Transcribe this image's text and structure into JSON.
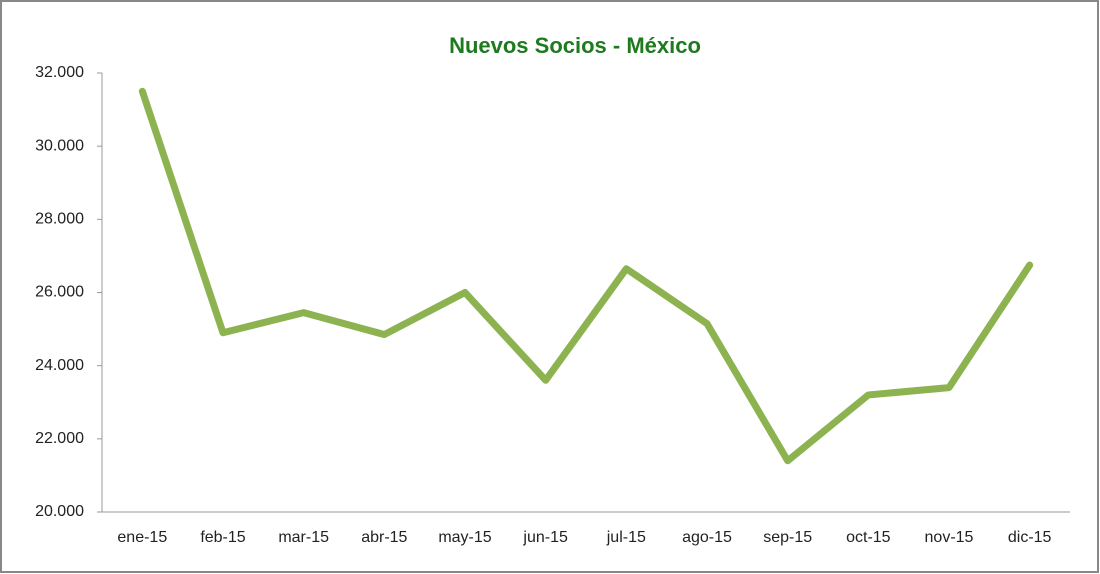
{
  "chart_data": {
    "type": "line",
    "title": "Nuevos Socios - México",
    "categories": [
      "ene-15",
      "feb-15",
      "mar-15",
      "abr-15",
      "may-15",
      "jun-15",
      "jul-15",
      "ago-15",
      "sep-15",
      "oct-15",
      "nov-15",
      "dic-15"
    ],
    "values": [
      31500,
      24900,
      25450,
      24850,
      26000,
      23600,
      26650,
      25150,
      21400,
      23200,
      23400,
      26750
    ],
    "color": "#8db350",
    "ylim": [
      20000,
      32000
    ],
    "yticks": [
      {
        "value": 20000,
        "label": "20.000"
      },
      {
        "value": 22000,
        "label": "22.000"
      },
      {
        "value": 24000,
        "label": "24.000"
      },
      {
        "value": 26000,
        "label": "26.000"
      },
      {
        "value": 28000,
        "label": "28.000"
      },
      {
        "value": 30000,
        "label": "30.000"
      },
      {
        "value": 32000,
        "label": "32.000"
      }
    ],
    "grid": false
  }
}
